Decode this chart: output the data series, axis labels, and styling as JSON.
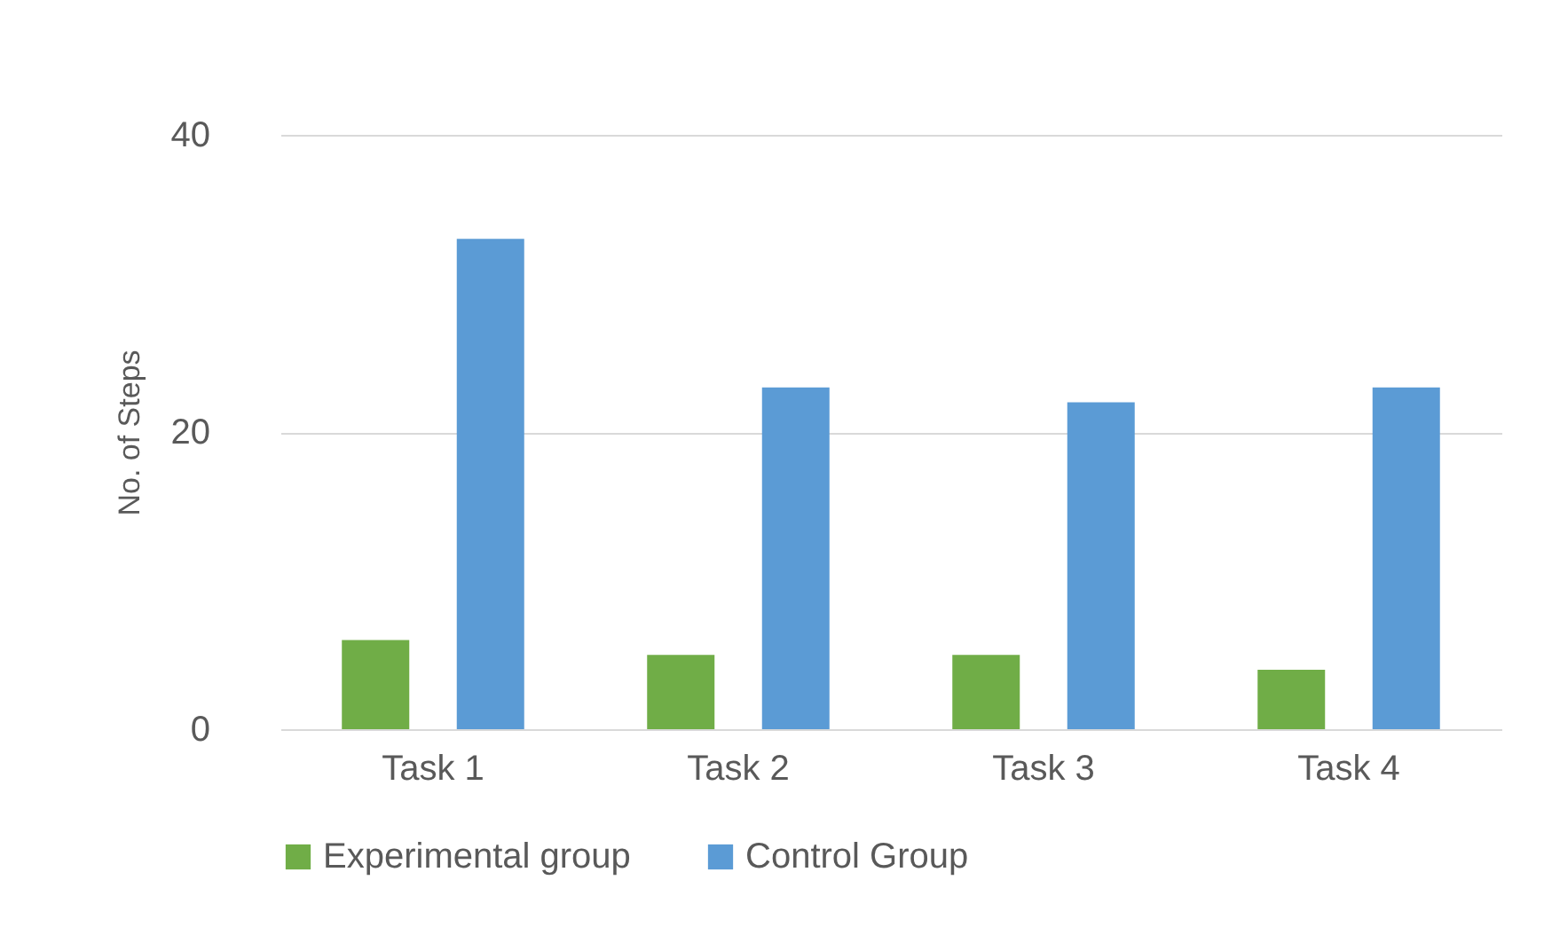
{
  "chart_data": {
    "type": "bar",
    "ylabel": "No. of Steps",
    "categories": [
      "Task 1",
      "Task 2",
      "Task 3",
      "Task 4"
    ],
    "series": [
      {
        "name": "Experimental group",
        "color": "#70ad47",
        "values": [
          6,
          5,
          5,
          4
        ]
      },
      {
        "name": "Control Group",
        "color": "#5b9bd5",
        "values": [
          33,
          23,
          22,
          23
        ]
      }
    ],
    "ylim": [
      0,
      40
    ],
    "yticks": [
      0,
      20,
      40
    ],
    "grid": "y",
    "legend": "bottom"
  }
}
